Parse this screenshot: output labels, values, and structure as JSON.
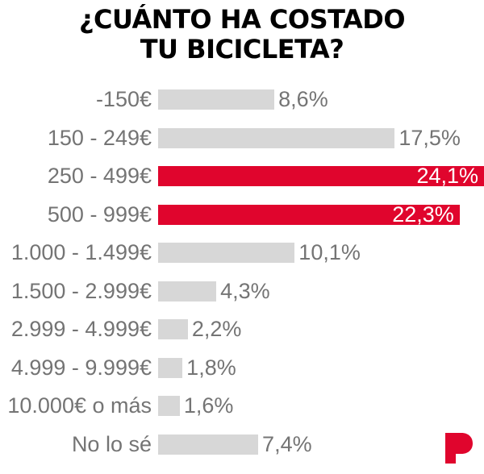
{
  "title": {
    "line1": "¿CUÁNTO HA COSTADO",
    "line2": "TU BICICLETA?"
  },
  "chart_data": {
    "type": "bar",
    "orientation": "horizontal",
    "title": "¿CUÁNTO HA COSTADO TU BICICLETA?",
    "categories": [
      "-150€",
      "150 - 249€",
      "250 - 499€",
      "500 - 999€",
      "1.000 - 1.499€",
      "1.500 - 2.999€",
      "2.999 - 4.999€",
      "4.999 - 9.999€",
      "10.000€ o más",
      "No lo sé"
    ],
    "values": [
      8.6,
      17.5,
      24.1,
      22.3,
      10.1,
      4.3,
      2.2,
      1.8,
      1.6,
      7.4
    ],
    "value_labels": [
      "8,6%",
      "17,5%",
      "24,1%",
      "22,3%",
      "10,1%",
      "4,3%",
      "2,2%",
      "1,8%",
      "1,6%",
      "7,4%"
    ],
    "unit": "%",
    "xlim": [
      0,
      24.1
    ],
    "highlighted_indices": [
      2,
      3
    ],
    "grid": false,
    "legend": false,
    "colors": {
      "background": "#FFFFFF",
      "bar_default": "#D7D7D7",
      "bar_highlight": "#E0052D",
      "category_text": "#747474",
      "value_text": "#747474",
      "value_text_on_highlight": "#FFFFFF",
      "title_text": "#000000",
      "logo": "#E0052D"
    }
  },
  "logo": {
    "letter": "P"
  }
}
